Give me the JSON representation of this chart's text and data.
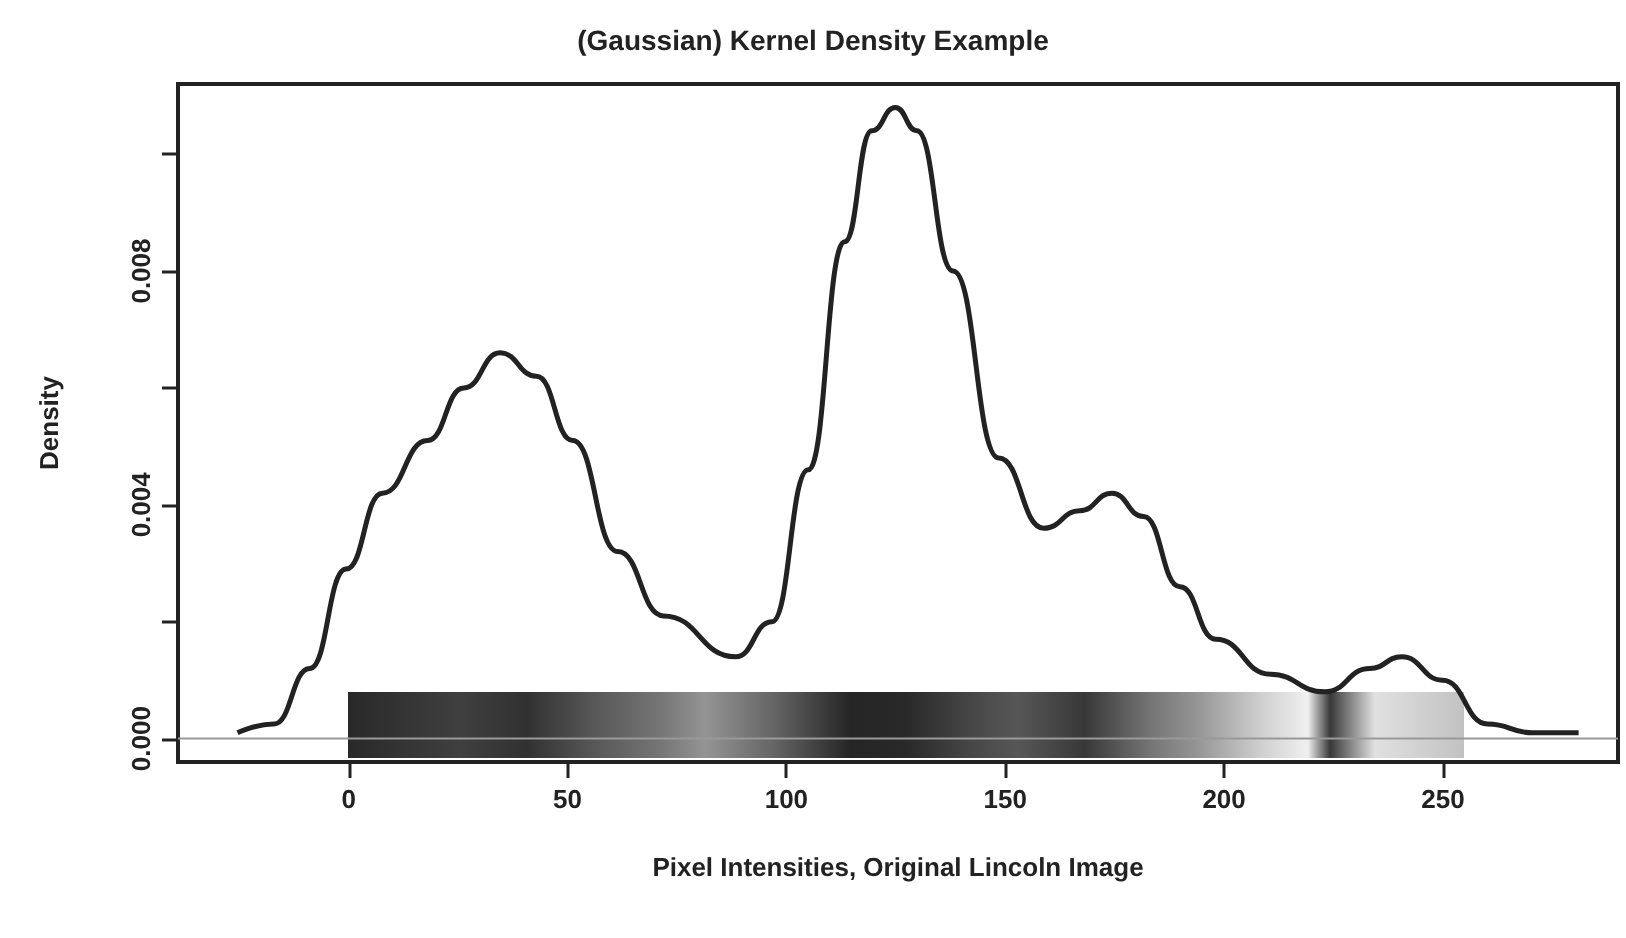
{
  "chart_data": {
    "type": "line",
    "title": "(Gaussian) Kernel Density Example",
    "xlabel": "Pixel Intensities, Original Lincoln Image",
    "ylabel": "Density",
    "x": [
      -25.4,
      -17.1,
      -8.9,
      -0.6,
      7.7,
      18,
      26.3,
      34.6,
      42.9,
      51.2,
      61.5,
      71.9,
      88.4,
      96.7,
      105,
      113.3,
      119.5,
      124.9,
      129.8,
      138.1,
      148.5,
      158.8,
      167.1,
      174.4,
      181.6,
      189.9,
      198.1,
      210.6,
      223,
      233.3,
      240.6,
      249.9,
      260.2,
      270.5,
      281
    ],
    "series": [
      {
        "color": "#222222",
        "values": [
          0.0001,
          0.00025,
          0.0012,
          0.0029,
          0.0042,
          0.0051,
          0.006,
          0.0066,
          0.0062,
          0.0051,
          0.0032,
          0.0021,
          0.0014,
          0.002,
          0.0046,
          0.0085,
          0.0104,
          0.0108,
          0.0104,
          0.008,
          0.0048,
          0.0036,
          0.0039,
          0.0042,
          0.0038,
          0.0026,
          0.0017,
          0.0011,
          0.0008,
          0.0012,
          0.0014,
          0.001,
          0.00025,
          0.0001,
          0.0001
        ]
      }
    ],
    "xlim": [
      -39,
      290
    ],
    "xticks": [
      0,
      50,
      100,
      150,
      200,
      250
    ],
    "ylim": [
      -0.0004,
      0.0112
    ],
    "yticks": [
      {
        "value": 0,
        "label": "0.000"
      },
      {
        "value": 0.002,
        "label": null
      },
      {
        "value": 0.004,
        "label": "0.004"
      },
      {
        "value": 0.006,
        "label": null
      },
      {
        "value": 0.008,
        "label": "0.008"
      },
      {
        "value": 0.01,
        "label": null
      }
    ],
    "ref_lines": [
      {
        "axis": "y",
        "value": 0,
        "label": null,
        "color": "#999999"
      }
    ],
    "grid": false,
    "marker": "none",
    "line_style": "solid"
  }
}
